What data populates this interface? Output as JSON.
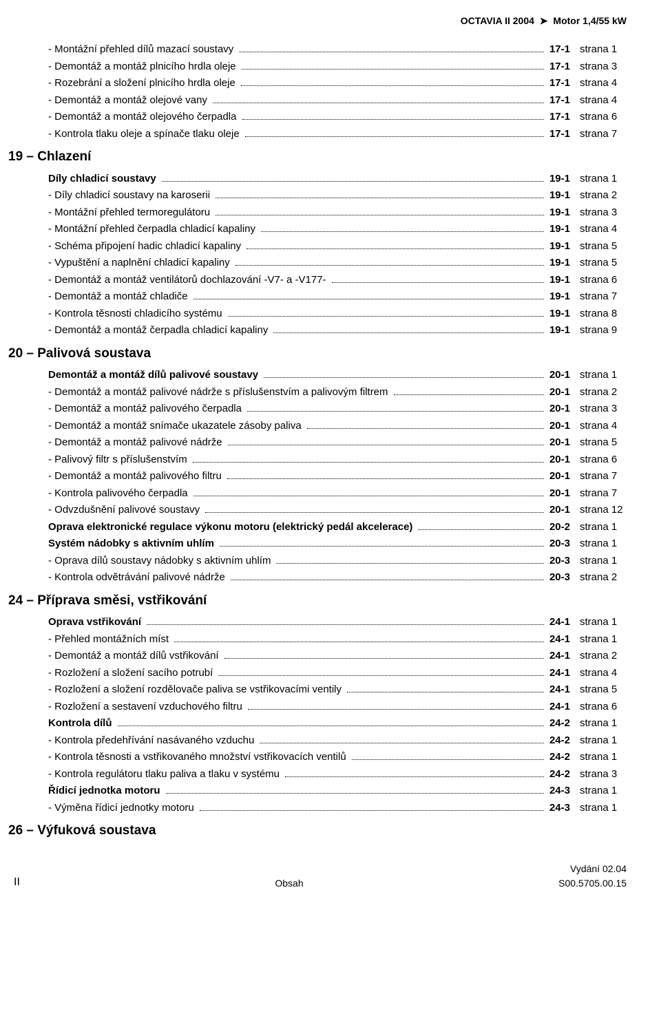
{
  "header": {
    "vehicle": "OCTAVIA II 2004",
    "engine": "Motor 1,4/55 kW"
  },
  "chapters": [
    {
      "heading_pre": "",
      "entries": [
        {
          "sub": true,
          "text": "- Montážní přehled dílů mazací soustavy",
          "section": "17-1",
          "page": "strana  1"
        },
        {
          "sub": true,
          "text": "- Demontáž a montáž plnicího hrdla oleje",
          "section": "17-1",
          "page": "strana  3"
        },
        {
          "sub": true,
          "text": "- Rozebrání a složení plnicího hrdla oleje",
          "section": "17-1",
          "page": "strana  4"
        },
        {
          "sub": true,
          "text": "- Demontáž a montáž olejové vany",
          "section": "17-1",
          "page": "strana  4"
        },
        {
          "sub": true,
          "text": "- Demontáž a montáž olejového čerpadla",
          "section": "17-1",
          "page": "strana  6"
        },
        {
          "sub": true,
          "text": "- Kontrola tlaku oleje a spínače tlaku oleje",
          "section": "17-1",
          "page": "strana  7"
        }
      ]
    },
    {
      "heading": "19 – Chlazení",
      "entries": [
        {
          "group": true,
          "text": "Díly chladicí soustavy",
          "section": "19-1",
          "page": "strana  1"
        },
        {
          "sub": true,
          "text": "- Díly chladicí soustavy na karoserii",
          "section": "19-1",
          "page": "strana  2"
        },
        {
          "sub": true,
          "text": "- Montážní přehled termoregulátoru",
          "section": "19-1",
          "page": "strana  3"
        },
        {
          "sub": true,
          "text": "- Montážní přehled čerpadla chladicí kapaliny",
          "section": "19-1",
          "page": "strana  4"
        },
        {
          "sub": true,
          "text": "- Schéma připojení hadic chladicí kapaliny",
          "section": "19-1",
          "page": "strana  5"
        },
        {
          "sub": true,
          "text": "- Vypuštění a naplnění chladicí kapaliny",
          "section": "19-1",
          "page": "strana  5"
        },
        {
          "sub": true,
          "text": "- Demontáž a montáž ventilátorů dochlazování -V7- a -V177-",
          "section": "19-1",
          "page": "strana  6"
        },
        {
          "sub": true,
          "text": "- Demontáž a montáž chladiče",
          "section": "19-1",
          "page": "strana  7"
        },
        {
          "sub": true,
          "text": "- Kontrola těsnosti chladicího systému",
          "section": "19-1",
          "page": "strana  8"
        },
        {
          "sub": true,
          "text": "- Demontáž a montáž čerpadla chladicí kapaliny",
          "section": "19-1",
          "page": "strana  9"
        }
      ]
    },
    {
      "heading": "20 – Palivová soustava",
      "entries": [
        {
          "group": true,
          "text": "Demontáž a montáž dílů palivové soustavy",
          "section": "20-1",
          "page": "strana  1"
        },
        {
          "sub": true,
          "text": "- Demontáž a montáž palivové nádrže s příslušenstvím a palivovým filtrem",
          "section": "20-1",
          "page": "strana  2"
        },
        {
          "sub": true,
          "text": "- Demontáž a montáž palivového čerpadla",
          "section": "20-1",
          "page": "strana  3"
        },
        {
          "sub": true,
          "text": "- Demontáž a montáž snímače ukazatele zásoby paliva",
          "section": "20-1",
          "page": "strana  4"
        },
        {
          "sub": true,
          "text": "- Demontáž a montáž palivové nádrže",
          "section": "20-1",
          "page": "strana  5"
        },
        {
          "sub": true,
          "text": "- Palivový filtr s příslušenstvím",
          "section": "20-1",
          "page": "strana  6"
        },
        {
          "sub": true,
          "text": "- Demontáž a montáž palivového filtru",
          "section": "20-1",
          "page": "strana  7"
        },
        {
          "sub": true,
          "text": "- Kontrola palivového čerpadla",
          "section": "20-1",
          "page": "strana  7"
        },
        {
          "sub": true,
          "text": "- Odvzdušnění palivové soustavy",
          "section": "20-1",
          "page": "strana 12"
        },
        {
          "group": true,
          "text": "Oprava elektronické regulace výkonu motoru (elektrický pedál akcelerace)",
          "section": "20-2",
          "page": "strana  1"
        },
        {
          "group": true,
          "text": "Systém nádobky s aktivním uhlím",
          "section": "20-3",
          "page": "strana  1"
        },
        {
          "sub": true,
          "text": "- Oprava dílů soustavy nádobky s aktivním uhlím",
          "section": "20-3",
          "page": "strana  1"
        },
        {
          "sub": true,
          "text": "- Kontrola odvětrávání palivové nádrže",
          "section": "20-3",
          "page": "strana  2"
        }
      ]
    },
    {
      "heading": "24 – Příprava směsi, vstřikování",
      "entries": [
        {
          "group": true,
          "text": "Oprava vstřikování",
          "section": "24-1",
          "page": "strana  1"
        },
        {
          "sub": true,
          "text": "- Přehled montážních míst",
          "section": "24-1",
          "page": "strana  1"
        },
        {
          "sub": true,
          "text": "- Demontáž a montáž dílů vstřikování",
          "section": "24-1",
          "page": "strana  2"
        },
        {
          "sub": true,
          "text": "- Rozložení a složení sacího potrubí",
          "section": "24-1",
          "page": "strana  4"
        },
        {
          "sub": true,
          "text": "- Rozložení a složení rozdělovače paliva se vstřikovacími ventily",
          "section": "24-1",
          "page": "strana  5"
        },
        {
          "sub": true,
          "text": "- Rozložení a sestavení vzduchového filtru",
          "section": "24-1",
          "page": "strana  6"
        },
        {
          "group": true,
          "text": "Kontrola dílů",
          "section": "24-2",
          "page": "strana  1"
        },
        {
          "sub": true,
          "text": "- Kontrola předehřívání nasávaného vzduchu",
          "section": "24-2",
          "page": "strana  1"
        },
        {
          "sub": true,
          "text": "- Kontrola těsnosti a vstřikovaného množství vstřikovacích ventilů",
          "section": "24-2",
          "page": "strana  1"
        },
        {
          "sub": true,
          "text": "- Kontrola regulátoru tlaku paliva a tlaku v systému",
          "section": "24-2",
          "page": "strana  3"
        },
        {
          "group": true,
          "text": "Řídicí jednotka motoru",
          "section": "24-3",
          "page": "strana  1"
        },
        {
          "sub": true,
          "text": "- Výměna řídicí jednotky motoru",
          "section": "24-3",
          "page": "strana  1"
        }
      ]
    },
    {
      "heading": "26 – Výfuková soustava",
      "entries": []
    }
  ],
  "footer": {
    "left": "II",
    "center": "Obsah",
    "right_line1": "Vydání 02.04",
    "right_line2": "S00.5705.00.15"
  },
  "colors": {
    "text": "#000000",
    "background": "#ffffff"
  }
}
